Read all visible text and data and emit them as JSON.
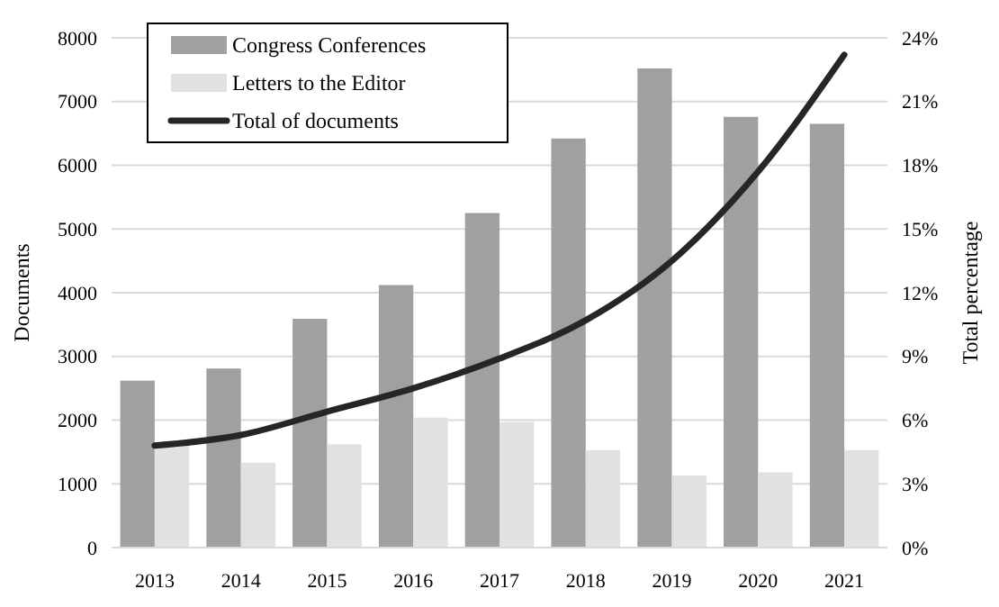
{
  "chart_data": {
    "type": "bar",
    "ylabel": "Documents",
    "y2label": "Total percentage",
    "categories": [
      "2013",
      "2014",
      "2015",
      "2016",
      "2017",
      "2018",
      "2019",
      "2020",
      "2021"
    ],
    "series": [
      {
        "name": "Congress Conferences",
        "color": "#a0a0a0",
        "values": [
          2620,
          2810,
          3590,
          4120,
          5250,
          6420,
          7520,
          6760,
          6650
        ]
      },
      {
        "name": "Letters to the Editor",
        "color": "#e1e1e1",
        "values": [
          1620,
          1330,
          1620,
          2040,
          1970,
          1530,
          1130,
          1180,
          1530
        ]
      },
      {
        "name": "Total of documents",
        "type": "line",
        "axis": "y2",
        "color": "#262626",
        "values": [
          4.8,
          5.3,
          6.4,
          7.5,
          8.9,
          10.7,
          13.5,
          17.7,
          23.2
        ]
      }
    ],
    "ylim": [
      0,
      8000
    ],
    "yticks": [
      0,
      1000,
      2000,
      3000,
      4000,
      5000,
      6000,
      7000,
      8000
    ],
    "y2lim": [
      0,
      24
    ],
    "y2ticks": [
      {
        "value": 0,
        "label": "0%"
      },
      {
        "value": 3,
        "label": "3%"
      },
      {
        "value": 6,
        "label": "6%"
      },
      {
        "value": 9,
        "label": "9%"
      },
      {
        "value": 12,
        "label": "12%"
      },
      {
        "value": 15,
        "label": "15%"
      },
      {
        "value": 18,
        "label": "18%"
      },
      {
        "value": 21,
        "label": "21%"
      },
      {
        "value": 24,
        "label": "24%"
      }
    ],
    "grid": "y",
    "legend": "top left",
    "marker": "none",
    "line_style": "solid"
  }
}
